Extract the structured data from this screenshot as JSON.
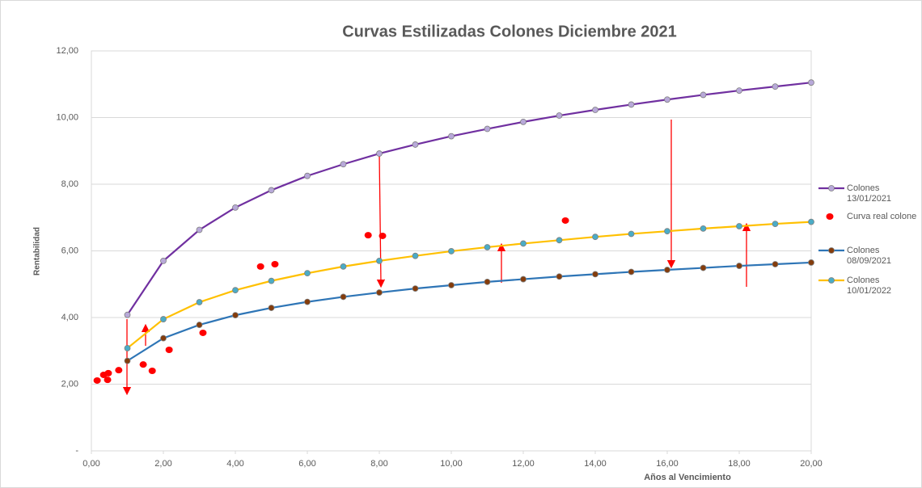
{
  "chart_data": {
    "type": "line",
    "title": "Curvas Estilizadas  Colones Diciembre 2021",
    "x_label": "Años al Vencimiento",
    "y_label": "Rentabilidad",
    "xlim": [
      0,
      20
    ],
    "ylim": [
      0,
      12
    ],
    "xticks": [
      {
        "value": 0,
        "label": "0,00"
      },
      {
        "value": 2,
        "label": "2,00"
      },
      {
        "value": 4,
        "label": "4,00"
      },
      {
        "value": 6,
        "label": "6,00"
      },
      {
        "value": 8,
        "label": "8,00"
      },
      {
        "value": 10,
        "label": "10,00"
      },
      {
        "value": 12,
        "label": "12,00"
      },
      {
        "value": 14,
        "label": "14,00"
      },
      {
        "value": 16,
        "label": "16,00"
      },
      {
        "value": 18,
        "label": "18,00"
      },
      {
        "value": 20,
        "label": "20,00"
      }
    ],
    "yticks": [
      {
        "value": 0,
        "label": "-"
      },
      {
        "value": 2,
        "label": "2,00"
      },
      {
        "value": 4,
        "label": "4,00"
      },
      {
        "value": 6,
        "label": "6,00"
      },
      {
        "value": 8,
        "label": "8,00"
      },
      {
        "value": 10,
        "label": "10,00"
      },
      {
        "value": 12,
        "label": "12,00"
      }
    ],
    "grid": true,
    "legend": "right",
    "series": [
      {
        "name": "Colones 13/01/2021",
        "kind": "line",
        "color": "#7030a0",
        "marker_color": "#b8a9d9",
        "x": [
          1,
          2,
          3,
          4,
          5,
          6,
          7,
          8,
          9,
          10,
          11,
          12,
          13,
          14,
          15,
          16,
          17,
          18,
          19,
          20
        ],
        "values": [
          4.08,
          5.7,
          6.63,
          7.3,
          7.82,
          8.25,
          8.6,
          8.92,
          9.19,
          9.44,
          9.66,
          9.87,
          10.06,
          10.23,
          10.39,
          10.54,
          10.68,
          10.81,
          10.93,
          11.05
        ]
      },
      {
        "name": "Curva real colone",
        "kind": "scatter",
        "color": "#ff0000",
        "x": [
          0.16,
          0.34,
          0.45,
          0.47,
          0.76,
          1.44,
          1.69,
          2.16,
          3.1,
          4.7,
          5.1,
          7.69,
          8.09,
          13.17
        ],
        "values": [
          2.11,
          2.28,
          2.13,
          2.33,
          2.42,
          2.59,
          2.4,
          3.03,
          3.54,
          5.53,
          5.6,
          6.47,
          6.45,
          6.91
        ]
      },
      {
        "name": "Colones 08/09/2021",
        "kind": "line",
        "color": "#2e75b6",
        "marker_color": "#843c0c",
        "x": [
          1,
          2,
          3,
          4,
          5,
          6,
          7,
          8,
          9,
          10,
          11,
          12,
          13,
          14,
          15,
          16,
          17,
          18,
          19,
          20
        ],
        "values": [
          2.7,
          3.38,
          3.78,
          4.07,
          4.29,
          4.47,
          4.62,
          4.75,
          4.87,
          4.97,
          5.07,
          5.15,
          5.23,
          5.3,
          5.37,
          5.43,
          5.49,
          5.55,
          5.6,
          5.65
        ]
      },
      {
        "name": "Colones 10/01/2022",
        "kind": "line",
        "color": "#ffc000",
        "marker_color": "#4bacc6",
        "x": [
          1,
          2,
          3,
          4,
          5,
          6,
          7,
          8,
          9,
          10,
          11,
          12,
          13,
          14,
          15,
          16,
          17,
          18,
          19,
          20
        ],
        "values": [
          3.08,
          3.95,
          4.46,
          4.82,
          5.1,
          5.33,
          5.53,
          5.7,
          5.85,
          5.99,
          6.11,
          6.22,
          6.32,
          6.42,
          6.51,
          6.59,
          6.67,
          6.74,
          6.81,
          6.87
        ]
      }
    ]
  }
}
